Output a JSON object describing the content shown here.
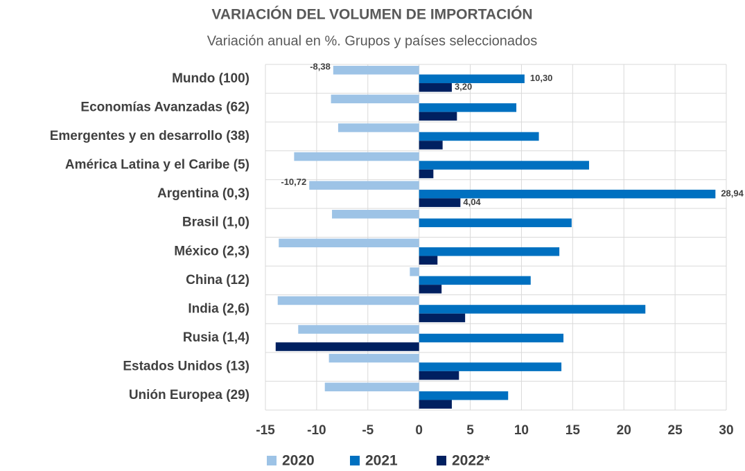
{
  "chart_data": {
    "type": "barh",
    "title": "VARIACIÓN DEL VOLUMEN DE IMPORTACIÓN",
    "subtitle": "Variación anual en %. Grupos y países seleccionados",
    "categories": [
      "Mundo (100)",
      "Economías Avanzadas (62)",
      "Emergentes y en desarrollo (38)",
      "América Latina y el Caribe (5)",
      "Argentina (0,3)",
      "Brasil (1,0)",
      "México (2,3)",
      "China  (12)",
      "India (2,6)",
      "Rusia (1,4)",
      "Estados Unidos  (13)",
      "Unión Europea (29)"
    ],
    "series": [
      {
        "name": "2020",
        "color": "#9dc3e6",
        "values": [
          -8.38,
          -8.6,
          -7.9,
          -12.2,
          -10.72,
          -8.5,
          -13.7,
          -0.9,
          -13.8,
          -11.8,
          -8.8,
          -9.2
        ],
        "value_labels": [
          "-8,38",
          null,
          null,
          null,
          "-10,72",
          null,
          null,
          null,
          null,
          null,
          null,
          null
        ]
      },
      {
        "name": "2021",
        "color": "#0070c0",
        "values": [
          10.3,
          9.5,
          11.7,
          16.6,
          28.94,
          14.9,
          13.7,
          10.9,
          22.1,
          14.1,
          13.9,
          8.7
        ],
        "value_labels": [
          "10,30",
          null,
          null,
          null,
          "28,94",
          null,
          null,
          null,
          null,
          null,
          null,
          null
        ]
      },
      {
        "name": "2022*",
        "color": "#002060",
        "values": [
          3.2,
          3.7,
          2.3,
          1.4,
          4.04,
          null,
          1.8,
          2.2,
          4.5,
          -14.0,
          3.9,
          3.2
        ],
        "value_labels": [
          "3,20",
          null,
          null,
          null,
          "4,04",
          null,
          null,
          null,
          null,
          null,
          null,
          null
        ]
      }
    ],
    "xlim": [
      -15,
      30
    ],
    "xticks": [
      -15,
      -10,
      -5,
      0,
      5,
      10,
      15,
      20,
      25,
      30
    ],
    "grid": true,
    "legend": "bottom"
  }
}
